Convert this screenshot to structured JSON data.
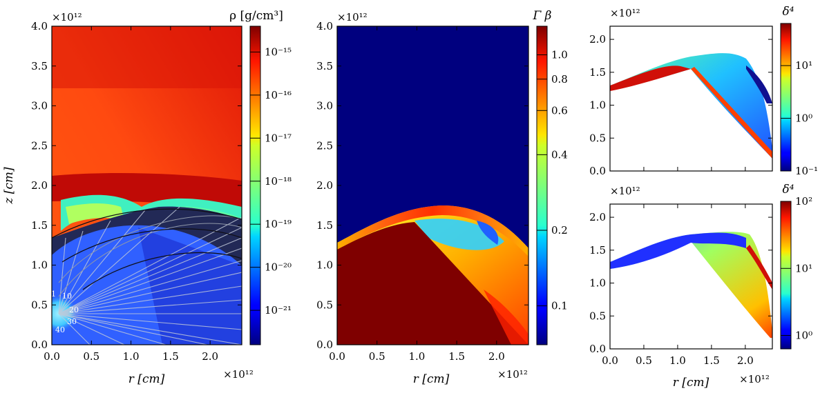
{
  "chart_data": [
    {
      "type": "heatmap",
      "id": "density",
      "xlabel": "r [cm]",
      "ylabel": "z [cm]",
      "x_multiplier": "×10¹²",
      "y_multiplier": "×10¹²",
      "xlim": [
        0,
        2.4
      ],
      "ylim": [
        0,
        4.0
      ],
      "xticks": [
        "0.0",
        "0.5",
        "1.0",
        "1.5",
        "2.0"
      ],
      "yticks": [
        "0.0",
        "0.5",
        "1.0",
        "1.5",
        "2.0",
        "2.5",
        "3.0",
        "3.5",
        "4.0"
      ],
      "colorbar": {
        "label": "ρ [g/cm³]",
        "scale": "log",
        "range": [
          -21.8,
          -14.4
        ],
        "ticks": [
          {
            "value": -15,
            "label": "10⁻¹⁵"
          },
          {
            "value": -16,
            "label": "10⁻¹⁶"
          },
          {
            "value": -17,
            "label": "10⁻¹⁷"
          },
          {
            "value": -18,
            "label": "10⁻¹⁸"
          },
          {
            "value": -19,
            "label": "10⁻¹⁹"
          },
          {
            "value": -20,
            "label": "10⁻²⁰"
          },
          {
            "value": -21,
            "label": "10⁻²¹"
          }
        ]
      },
      "contour_labels": [
        "1",
        "10",
        "20",
        "30",
        "40"
      ]
    },
    {
      "type": "heatmap",
      "id": "lorentz",
      "xlabel": "r [cm]",
      "ylabel": "",
      "x_multiplier": "×10¹²",
      "y_multiplier": "×10¹²",
      "xlim": [
        0,
        2.4
      ],
      "ylim": [
        0,
        4.0
      ],
      "xticks": [
        "0.0",
        "0.5",
        "1.0",
        "1.5",
        "2.0"
      ],
      "yticks": [
        "0.0",
        "0.5",
        "1.0",
        "1.5",
        "2.0",
        "2.5",
        "3.0",
        "3.5",
        "4.0"
      ],
      "colorbar": {
        "label": "Γ β",
        "scale": "log",
        "range": [
          0.07,
          1.3
        ],
        "ticks": [
          {
            "value": 1.0,
            "label": "1.0"
          },
          {
            "value": 0.8,
            "label": "0.8"
          },
          {
            "value": 0.6,
            "label": "0.6"
          },
          {
            "value": 0.4,
            "label": "0.4"
          },
          {
            "value": 0.2,
            "label": "0.2"
          },
          {
            "value": 0.1,
            "label": "0.1"
          }
        ]
      }
    },
    {
      "type": "heatmap",
      "id": "doppler-top",
      "xlabel": "",
      "ylabel": "",
      "y_multiplier": "×10¹²",
      "xlim": [
        0,
        2.4
      ],
      "ylim": [
        0,
        2.2
      ],
      "yticks": [
        "0.0",
        "0.5",
        "1.0",
        "1.5",
        "2.0"
      ],
      "colorbar": {
        "label": "δ⁴",
        "scale": "log",
        "range": [
          -1,
          1.8
        ],
        "ticks": [
          {
            "value": 1,
            "label": "10¹"
          },
          {
            "value": 0,
            "label": "10⁰"
          },
          {
            "value": -1,
            "label": "10⁻¹"
          }
        ]
      }
    },
    {
      "type": "heatmap",
      "id": "doppler-bottom",
      "xlabel": "r [cm]",
      "ylabel": "",
      "x_multiplier": "×10¹²",
      "y_multiplier": "×10¹²",
      "xlim": [
        0,
        2.4
      ],
      "ylim": [
        0,
        2.2
      ],
      "xticks": [
        "0.0",
        "0.5",
        "1.0",
        "1.5",
        "2.0"
      ],
      "yticks": [
        "0.0",
        "0.5",
        "1.0",
        "1.5",
        "2.0"
      ],
      "colorbar": {
        "label": "δ⁴",
        "scale": "log",
        "range": [
          -0.2,
          2
        ],
        "ticks": [
          {
            "value": 2,
            "label": "10²"
          },
          {
            "value": 1,
            "label": "10¹"
          },
          {
            "value": 0,
            "label": "10⁰"
          }
        ]
      }
    }
  ]
}
